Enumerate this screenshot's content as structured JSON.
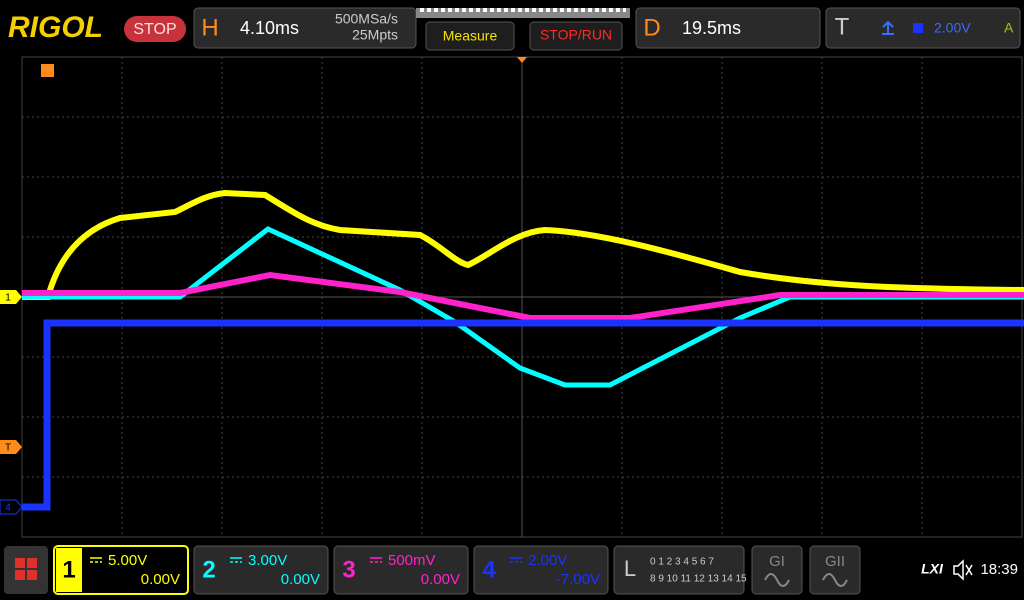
{
  "header": {
    "logo": "RIGOL",
    "status": "STOP",
    "horizontal": {
      "label": "H",
      "timebase": "4.10ms",
      "sample_rate": "500MSa/s",
      "memory_depth": "25Mpts"
    },
    "measure_button": "Measure",
    "stop_run_button": "STOP/RUN",
    "delay": {
      "label": "D",
      "value": "19.5ms"
    },
    "trigger": {
      "label": "T",
      "level": "2.00V",
      "source": "A"
    }
  },
  "markers": {
    "channel1": "1",
    "trigger_level": "T",
    "channel4": "4"
  },
  "channels": [
    {
      "number": "1",
      "scale": "5.00V",
      "offset": "0.00V",
      "color": "#ffff00"
    },
    {
      "number": "2",
      "scale": "3.00V",
      "offset": "0.00V",
      "color": "#00ffff"
    },
    {
      "number": "3",
      "scale": "500mV",
      "offset": "0.00V",
      "color": "#ff22cc"
    },
    {
      "number": "4",
      "scale": "2.00V",
      "offset": "-7.00V",
      "color": "#1a33ff"
    }
  ],
  "digital": {
    "label": "L",
    "row1": "0 1 2 3  4 5 6 7",
    "row2": "8 9 10 11 12 13 14 15"
  },
  "generators": [
    "GI",
    "GII"
  ],
  "status_bar": {
    "lxi": "LXI",
    "time": "18:39"
  }
}
